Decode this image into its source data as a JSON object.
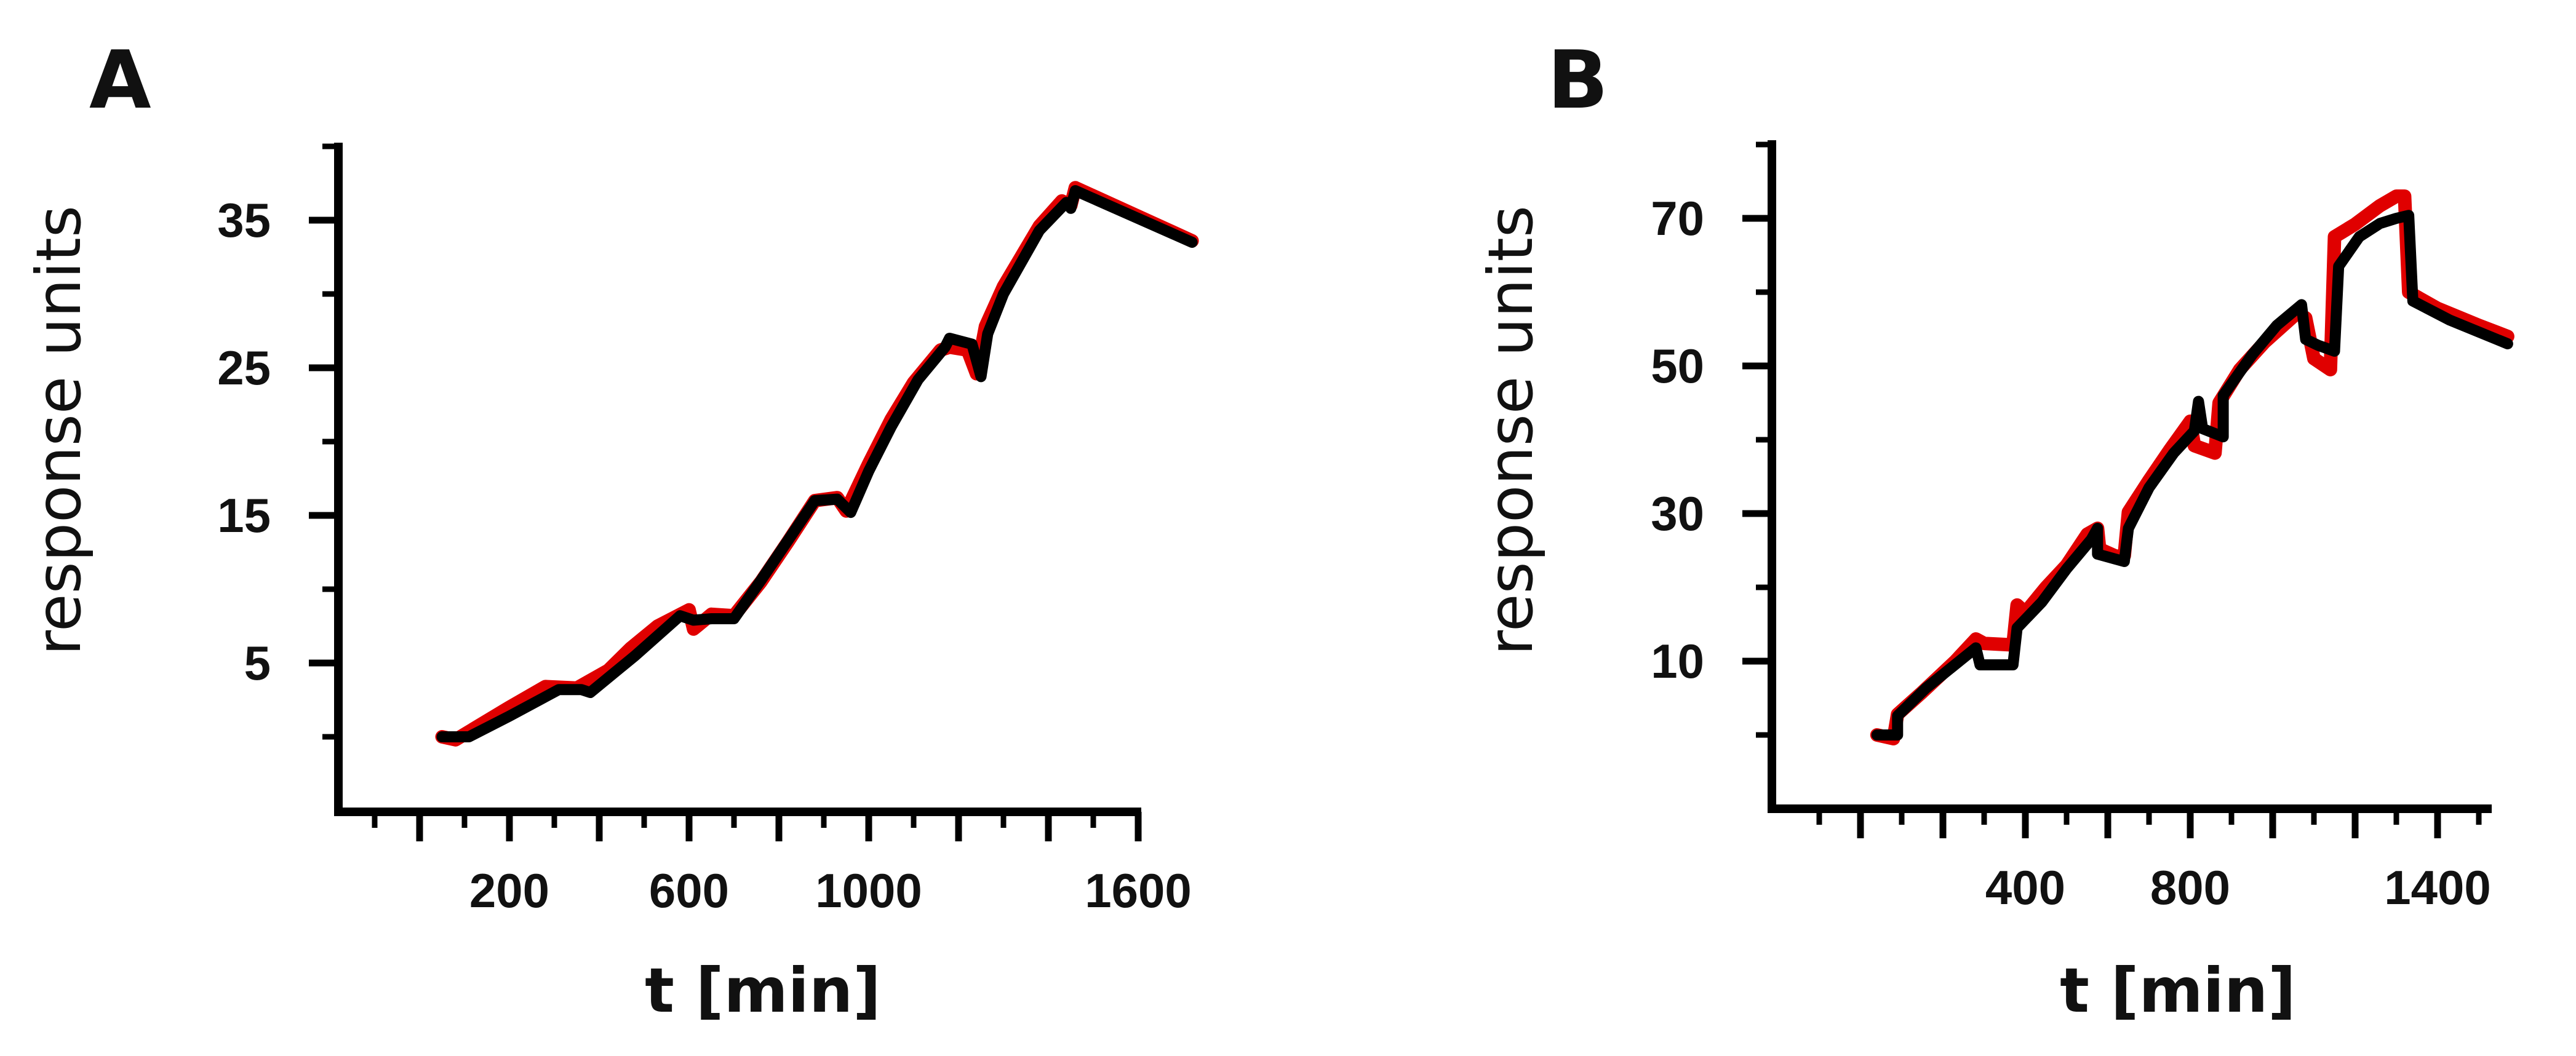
{
  "chart_data": [
    {
      "panel": "A",
      "type": "line",
      "xlabel": "t [min]",
      "ylabel": "response units",
      "xticks": [
        200,
        600,
        1000,
        1600
      ],
      "yticks": [
        5,
        15,
        25,
        35
      ],
      "xlim": [
        -100,
        1800
      ],
      "ylim": [
        -5,
        40
      ],
      "series": [
        {
          "color": "#e00000",
          "points": [
            [
              50,
              0
            ],
            [
              80,
              -0.2
            ],
            [
              200,
              2.0
            ],
            [
              280,
              3.4
            ],
            [
              350,
              3.3
            ],
            [
              420,
              4.5
            ],
            [
              470,
              6.0
            ],
            [
              530,
              7.5
            ],
            [
              600,
              8.6
            ],
            [
              610,
              7.3
            ],
            [
              650,
              8.3
            ],
            [
              700,
              8.2
            ],
            [
              760,
              10.5
            ],
            [
              820,
              13.2
            ],
            [
              880,
              16.0
            ],
            [
              930,
              16.2
            ],
            [
              950,
              15.3
            ],
            [
              1000,
              18.5
            ],
            [
              1050,
              21.5
            ],
            [
              1100,
              24.0
            ],
            [
              1160,
              26.2
            ],
            [
              1180,
              26.4
            ],
            [
              1220,
              26.2
            ],
            [
              1240,
              24.6
            ],
            [
              1260,
              27.8
            ],
            [
              1300,
              30.5
            ],
            [
              1380,
              34.6
            ],
            [
              1430,
              36.3
            ],
            [
              1450,
              36.0
            ],
            [
              1460,
              37.2
            ],
            [
              1720,
              33.6
            ]
          ]
        },
        {
          "color": "#000000",
          "points": [
            [
              50,
              0
            ],
            [
              110,
              0
            ],
            [
              200,
              1.4
            ],
            [
              310,
              3.2
            ],
            [
              360,
              3.2
            ],
            [
              380,
              3.0
            ],
            [
              480,
              5.5
            ],
            [
              580,
              8.2
            ],
            [
              610,
              7.9
            ],
            [
              650,
              8.0
            ],
            [
              700,
              8.0
            ],
            [
              760,
              10.6
            ],
            [
              820,
              13.3
            ],
            [
              880,
              16.0
            ],
            [
              930,
              16.1
            ],
            [
              960,
              15.2
            ],
            [
              1000,
              18.0
            ],
            [
              1050,
              21.0
            ],
            [
              1110,
              24.2
            ],
            [
              1170,
              26.4
            ],
            [
              1180,
              27.0
            ],
            [
              1230,
              26.6
            ],
            [
              1250,
              24.4
            ],
            [
              1265,
              27.3
            ],
            [
              1300,
              30.0
            ],
            [
              1380,
              34.3
            ],
            [
              1440,
              36.2
            ],
            [
              1450,
              35.8
            ],
            [
              1460,
              37.0
            ],
            [
              1720,
              33.5
            ]
          ]
        }
      ]
    },
    {
      "panel": "B",
      "type": "line",
      "xlabel": "t [min]",
      "ylabel": "response units",
      "xticks": [
        400,
        800,
        1400
      ],
      "yticks": [
        10,
        30,
        50,
        70
      ],
      "xlim": [
        -120,
        1600
      ],
      "ylim": [
        -10,
        80
      ],
      "series": [
        {
          "color": "#e00000",
          "points": [
            [
              40,
              0
            ],
            [
              80,
              -0.5
            ],
            [
              90,
              2.8
            ],
            [
              150,
              5.8
            ],
            [
              230,
              10.0
            ],
            [
              280,
              13.0
            ],
            [
              300,
              12.4
            ],
            [
              370,
              12.2
            ],
            [
              380,
              17.6
            ],
            [
              400,
              16.6
            ],
            [
              450,
              20.0
            ],
            [
              500,
              23.0
            ],
            [
              550,
              27.2
            ],
            [
              575,
              28.0
            ],
            [
              580,
              25.2
            ],
            [
              620,
              24.2
            ],
            [
              640,
              24.3
            ],
            [
              650,
              30.2
            ],
            [
              700,
              34.5
            ],
            [
              750,
              38.6
            ],
            [
              800,
              42.5
            ],
            [
              810,
              39.2
            ],
            [
              860,
              38.2
            ],
            [
              870,
              45.0
            ],
            [
              920,
              49.5
            ],
            [
              980,
              53.2
            ],
            [
              1060,
              57.2
            ],
            [
              1080,
              56.5
            ],
            [
              1100,
              51.0
            ],
            [
              1140,
              49.5
            ],
            [
              1150,
              67.5
            ],
            [
              1200,
              69.2
            ],
            [
              1260,
              71.7
            ],
            [
              1300,
              73.0
            ],
            [
              1320,
              73.0
            ],
            [
              1330,
              60.0
            ],
            [
              1400,
              57.8
            ],
            [
              1500,
              55.5
            ],
            [
              1570,
              54.0
            ]
          ]
        },
        {
          "color": "#000000",
          "points": [
            [
              40,
              0
            ],
            [
              90,
              0
            ],
            [
              90,
              2.6
            ],
            [
              160,
              6.4
            ],
            [
              240,
              10.0
            ],
            [
              280,
              11.8
            ],
            [
              290,
              9.5
            ],
            [
              370,
              9.5
            ],
            [
              380,
              14.5
            ],
            [
              440,
              18.0
            ],
            [
              500,
              22.5
            ],
            [
              560,
              26.5
            ],
            [
              575,
              28.0
            ],
            [
              575,
              24.5
            ],
            [
              640,
              23.5
            ],
            [
              650,
              28.0
            ],
            [
              700,
              33.5
            ],
            [
              760,
              38.2
            ],
            [
              810,
              41.2
            ],
            [
              820,
              45.2
            ],
            [
              830,
              41.5
            ],
            [
              880,
              40.4
            ],
            [
              880,
              46.0
            ],
            [
              950,
              51.5
            ],
            [
              1010,
              55.5
            ],
            [
              1070,
              58.3
            ],
            [
              1080,
              53.6
            ],
            [
              1110,
              52.8
            ],
            [
              1150,
              52.0
            ],
            [
              1160,
              63.5
            ],
            [
              1210,
              67.5
            ],
            [
              1260,
              69.3
            ],
            [
              1300,
              70.0
            ],
            [
              1330,
              70.4
            ],
            [
              1340,
              58.8
            ],
            [
              1430,
              56.2
            ],
            [
              1570,
              53.0
            ]
          ]
        }
      ]
    }
  ]
}
